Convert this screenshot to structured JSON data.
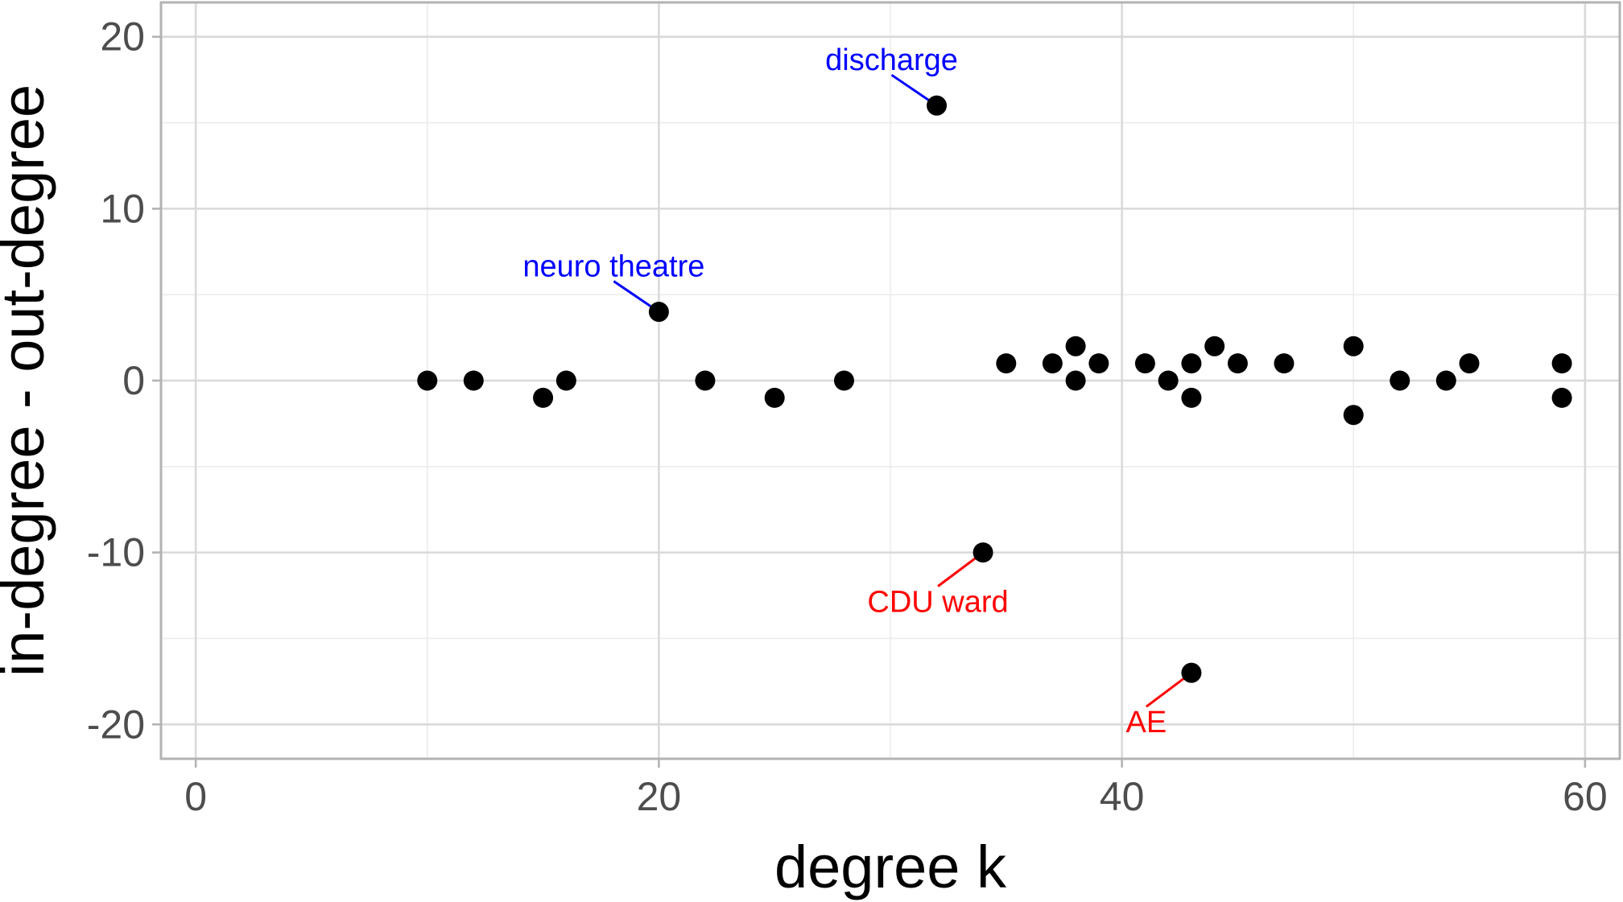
{
  "chart_data": {
    "type": "scatter",
    "title": "",
    "xlabel": "degree k",
    "ylabel": "in-degree - out-degree",
    "xlim": [
      -1.5,
      61.5
    ],
    "ylim": [
      -22,
      22
    ],
    "x_ticks": [
      0,
      20,
      40,
      60
    ],
    "x_tick_labels": [
      "0",
      "20",
      "40",
      "60"
    ],
    "y_ticks": [
      -20,
      -10,
      0,
      10,
      20
    ],
    "y_tick_labels": [
      "-20",
      "-10",
      "0",
      "10",
      "20"
    ],
    "grid": true,
    "legend": "none",
    "point_color": "#000000",
    "points": [
      {
        "x": 10,
        "y": 0
      },
      {
        "x": 12,
        "y": 0
      },
      {
        "x": 15,
        "y": -1
      },
      {
        "x": 16,
        "y": 0
      },
      {
        "x": 20,
        "y": 4
      },
      {
        "x": 22,
        "y": 0
      },
      {
        "x": 25,
        "y": -1
      },
      {
        "x": 28,
        "y": 0
      },
      {
        "x": 32,
        "y": 16
      },
      {
        "x": 34,
        "y": -10
      },
      {
        "x": 35,
        "y": 1
      },
      {
        "x": 37,
        "y": 1
      },
      {
        "x": 38,
        "y": 2
      },
      {
        "x": 38,
        "y": 0
      },
      {
        "x": 39,
        "y": 1
      },
      {
        "x": 41,
        "y": 1
      },
      {
        "x": 42,
        "y": 0
      },
      {
        "x": 43,
        "y": 1
      },
      {
        "x": 43,
        "y": -1
      },
      {
        "x": 43,
        "y": -17
      },
      {
        "x": 44,
        "y": 2
      },
      {
        "x": 45,
        "y": 1
      },
      {
        "x": 47,
        "y": 1
      },
      {
        "x": 50,
        "y": 2
      },
      {
        "x": 50,
        "y": -2
      },
      {
        "x": 52,
        "y": 0
      },
      {
        "x": 54,
        "y": 0
      },
      {
        "x": 55,
        "y": 1
      },
      {
        "x": 59,
        "y": 1
      },
      {
        "x": 59,
        "y": -1
      }
    ],
    "annotations": [
      {
        "text": "discharge",
        "x": 32,
        "y": 16,
        "color": "#0000ff",
        "placement": "above-left"
      },
      {
        "text": "neuro theatre",
        "x": 20,
        "y": 4,
        "color": "#0000ff",
        "placement": "above-left"
      },
      {
        "text": "CDU ward",
        "x": 34,
        "y": -10,
        "color": "#ff0000",
        "placement": "below-left"
      },
      {
        "text": "AE",
        "x": 43,
        "y": -17,
        "color": "#ff0000",
        "placement": "below-left"
      }
    ]
  }
}
